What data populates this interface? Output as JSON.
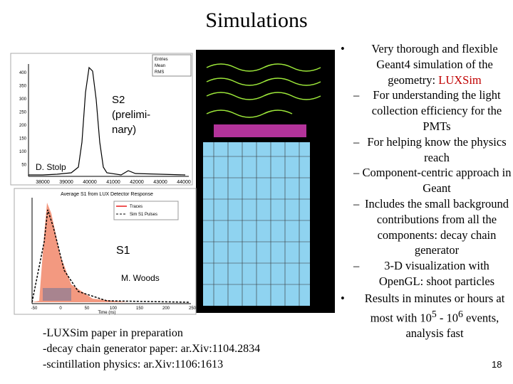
{
  "header": {
    "title": "Simulations"
  },
  "s2_plot": {
    "label": "S2 (prelimi-nary)",
    "credit": "D. Stolp",
    "yticks": [
      "400",
      "350",
      "300",
      "250",
      "200",
      "150",
      "100",
      "50"
    ],
    "xticks": [
      "38000",
      "39000",
      "40000",
      "41000",
      "42000",
      "43000",
      "44000"
    ],
    "stats": [
      "Entries",
      "Mean",
      "RMS"
    ]
  },
  "s1_plot": {
    "title": "Average S1 from LUX Detector Response",
    "label": "S1",
    "credit": "M. Woods",
    "legend": [
      "Traces",
      "Sim S1 Pulses"
    ],
    "xticks": [
      "-50",
      "0",
      "50",
      "100",
      "150",
      "200",
      "250"
    ],
    "xlabel": "Time (ns)"
  },
  "references": [
    "-LUXSim paper in preparation",
    "-decay chain generator paper: ar.Xiv:1104.2834",
    "-scintillation physics: ar.Xiv:1106:1613"
  ],
  "bullets": [
    {
      "text": "Very thorough and flexible Geant4 simulation of the geometry: ",
      "highlight": "LUXSim",
      "sub": [
        "For understanding the light collection efficiency for the PMTs",
        "For helping know the physics reach",
        "Component-centric approach in Geant",
        "Includes the small background contributions from all the components: decay chain generator",
        "3-D visualization with OpenGL: shoot particles"
      ]
    },
    {
      "parts": [
        "Results in minutes or hours at most with 10",
        "5",
        " - 10",
        "6",
        " events, analysis fast"
      ]
    }
  ],
  "footer": {
    "page": "18"
  }
}
